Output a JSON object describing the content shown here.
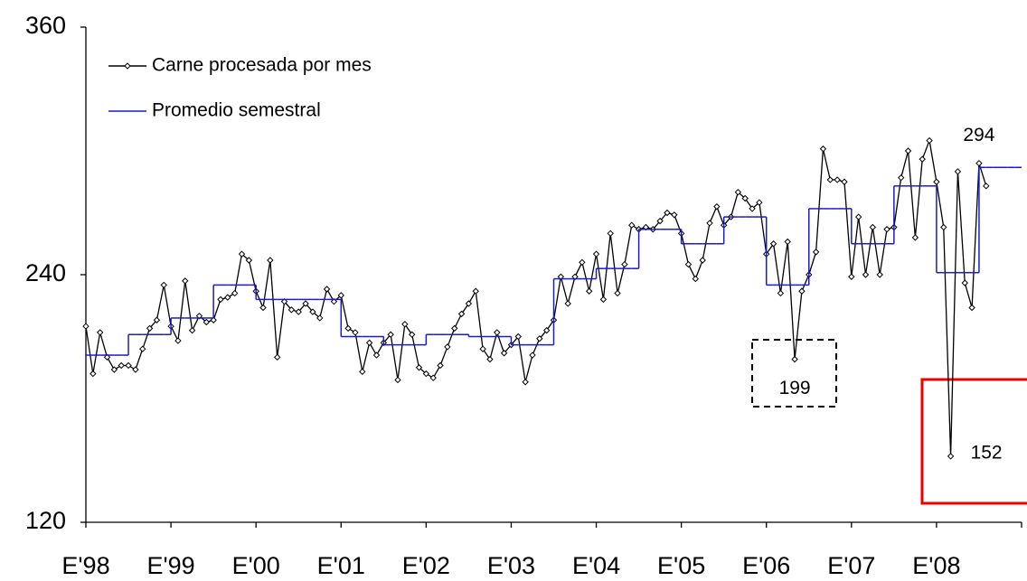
{
  "chart_data": {
    "type": "line",
    "categories": [
      "E'98",
      null,
      null,
      null,
      null,
      null,
      null,
      null,
      null,
      null,
      null,
      null,
      "E'99",
      null,
      null,
      null,
      null,
      null,
      null,
      null,
      null,
      null,
      null,
      null,
      "E'00",
      null,
      null,
      null,
      null,
      null,
      null,
      null,
      null,
      null,
      null,
      null,
      "E'01",
      null,
      null,
      null,
      null,
      null,
      null,
      null,
      null,
      null,
      null,
      null,
      "E'02",
      null,
      null,
      null,
      null,
      null,
      null,
      null,
      null,
      null,
      null,
      null,
      "E'03",
      null,
      null,
      null,
      null,
      null,
      null,
      null,
      null,
      null,
      null,
      null,
      "E'04",
      null,
      null,
      null,
      null,
      null,
      null,
      null,
      null,
      null,
      null,
      null,
      "E'05",
      null,
      null,
      null,
      null,
      null,
      null,
      null,
      null,
      null,
      null,
      null,
      "E'06",
      null,
      null,
      null,
      null,
      null,
      null,
      null,
      null,
      null,
      null,
      null,
      "E'07",
      null,
      null,
      null,
      null,
      null,
      null,
      null,
      null,
      null,
      null,
      null,
      "E'08",
      null,
      null,
      null,
      null,
      null,
      null,
      null,
      null,
      null,
      null,
      null
    ],
    "series": [
      {
        "name": "Carne procesada por mes",
        "color": "#000000",
        "markers": true,
        "values": [
          215,
          192,
          212,
          200,
          194,
          196,
          196,
          194,
          204,
          214,
          218,
          235,
          215,
          208,
          237,
          213,
          220,
          217,
          218,
          228,
          229,
          231,
          250,
          247,
          232,
          224,
          247,
          200,
          227,
          223,
          222,
          226,
          222,
          219,
          233,
          227,
          230,
          214,
          212,
          193,
          207,
          201,
          207,
          211,
          189,
          216,
          211,
          195,
          192,
          190,
          196,
          205,
          214,
          221,
          226,
          232,
          204,
          199,
          212,
          202,
          206,
          210,
          188,
          201,
          209,
          213,
          218,
          239,
          226,
          239,
          246,
          232,
          250,
          228,
          260,
          231,
          245,
          264,
          262,
          263,
          262,
          266,
          270,
          269,
          260,
          245,
          238,
          247,
          265,
          273,
          264,
          268,
          280,
          277,
          272,
          275,
          250,
          255,
          231,
          256,
          199,
          232,
          240,
          251,
          301,
          286,
          286,
          285,
          239,
          268,
          240,
          263,
          240,
          262,
          263,
          287,
          300,
          258,
          296,
          305,
          285,
          263,
          152,
          290,
          236,
          224,
          294,
          283,
          null,
          null,
          null,
          null
        ],
        "labels_at": [
          100,
          122,
          126
        ]
      },
      {
        "name": "Promedio semestral",
        "color": "#1a1acc",
        "step": true,
        "values": [
          201,
          201,
          201,
          201,
          201,
          201,
          211,
          211,
          211,
          211,
          211,
          211,
          219,
          219,
          219,
          219,
          219,
          219,
          235,
          235,
          235,
          235,
          235,
          235,
          228,
          228,
          228,
          228,
          228,
          228,
          228,
          228,
          228,
          228,
          228,
          228,
          210,
          210,
          210,
          210,
          210,
          210,
          206,
          206,
          206,
          206,
          206,
          206,
          211,
          211,
          211,
          211,
          211,
          211,
          210,
          210,
          210,
          210,
          210,
          210,
          206,
          206,
          206,
          206,
          206,
          206,
          238,
          238,
          238,
          238,
          238,
          238,
          243,
          243,
          243,
          243,
          243,
          243,
          262,
          262,
          262,
          262,
          262,
          262,
          255,
          255,
          255,
          255,
          255,
          255,
          268,
          268,
          268,
          268,
          268,
          268,
          235,
          235,
          235,
          235,
          235,
          235,
          272,
          272,
          272,
          272,
          272,
          272,
          255,
          255,
          255,
          255,
          255,
          255,
          283,
          283,
          283,
          283,
          283,
          283,
          241,
          241,
          241,
          241,
          241,
          241,
          292,
          292,
          292,
          292,
          292,
          292
        ]
      }
    ],
    "ylim": [
      120,
      360
    ],
    "yticks": [
      120,
      240,
      360
    ],
    "legend": "upper left",
    "grid": false
  }
}
